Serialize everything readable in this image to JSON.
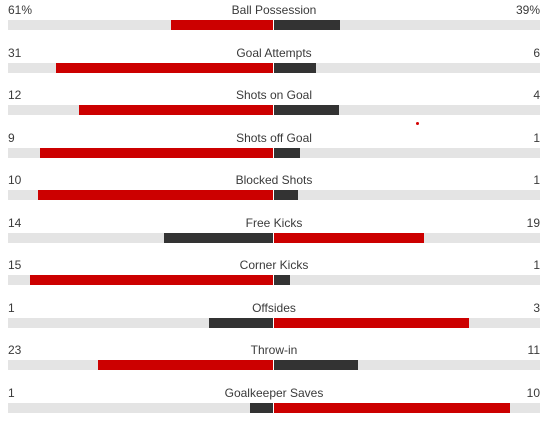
{
  "colors": {
    "leader": "#cc0000",
    "trailer": "#333333",
    "track": "#e4e4e4"
  },
  "stats": [
    {
      "name": "Ball Possession",
      "home": "61%",
      "away": "39%",
      "home_share": 0.61,
      "away_share": 0.39,
      "scale": 0.65
    },
    {
      "name": "Goal Attempts",
      "home": "31",
      "away": "6",
      "home_share": 0.838,
      "away_share": 0.162,
      "scale": 1.0
    },
    {
      "name": "Shots on Goal",
      "home": "12",
      "away": "4",
      "home_share": 0.75,
      "away_share": 0.25,
      "scale": 1.0
    },
    {
      "name": "Shots off Goal",
      "home": "9",
      "away": "1",
      "home_share": 0.9,
      "away_share": 0.1,
      "scale": 1.0
    },
    {
      "name": "Blocked Shots",
      "home": "10",
      "away": "1",
      "home_share": 0.909,
      "away_share": 0.091,
      "scale": 1.0
    },
    {
      "name": "Free Kicks",
      "home": "14",
      "away": "19",
      "home_share": 0.424,
      "away_share": 0.576,
      "scale": 1.0
    },
    {
      "name": "Corner Kicks",
      "home": "15",
      "away": "1",
      "home_share": 0.9375,
      "away_share": 0.0625,
      "scale": 1.0
    },
    {
      "name": "Offsides",
      "home": "1",
      "away": "3",
      "home_share": 0.25,
      "away_share": 0.75,
      "scale": 1.0
    },
    {
      "name": "Throw-in",
      "home": "23",
      "away": "11",
      "home_share": 0.676,
      "away_share": 0.324,
      "scale": 1.0
    },
    {
      "name": "Goalkeeper Saves",
      "home": "1",
      "away": "10",
      "home_share": 0.091,
      "away_share": 0.909,
      "scale": 1.0
    }
  ]
}
